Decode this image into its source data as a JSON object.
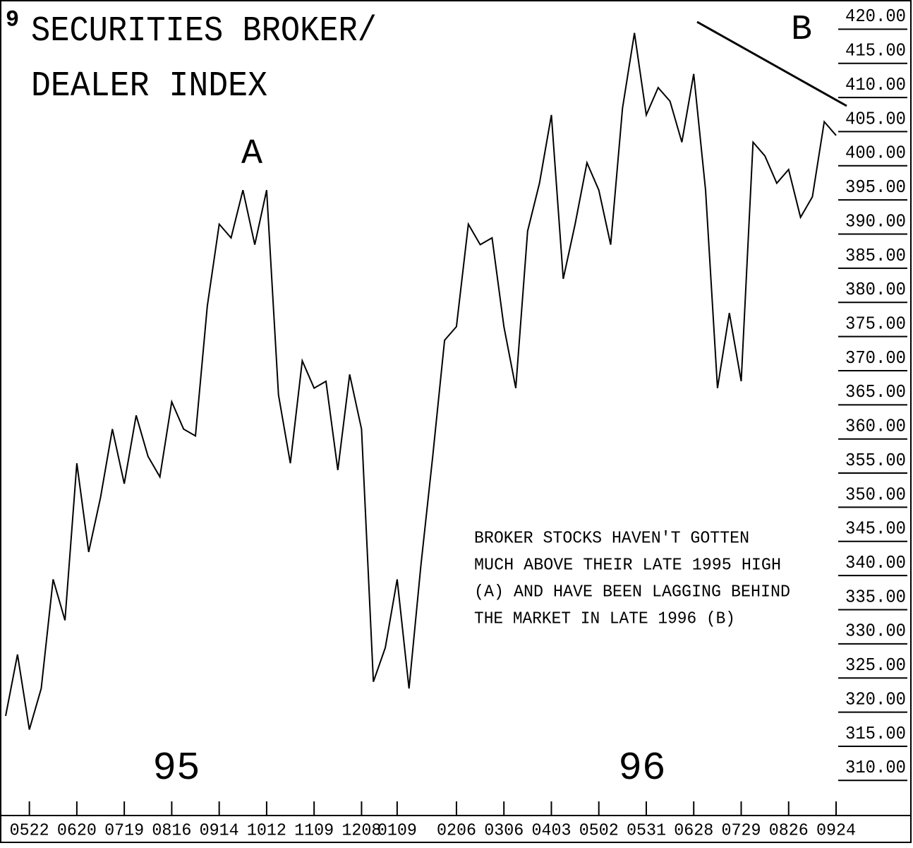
{
  "chart_data": {
    "type": "line",
    "title": "SECURITIES BROKER/",
    "subtitle": "DEALER INDEX",
    "figure_number": "9",
    "annotations": {
      "peak_a": "A",
      "peak_b": "B",
      "year_1": "95",
      "year_2": "96",
      "note": [
        "BROKER STOCKS HAVEN'T GOTTEN",
        "MUCH ABOVE THEIR LATE 1995 HIGH",
        "(A) AND HAVE BEEN LAGGING BEHIND",
        "THE MARKET IN LATE 1996 (B)"
      ]
    },
    "categories": [
      null,
      null,
      "0522",
      null,
      null,
      null,
      "0620",
      null,
      null,
      null,
      "0719",
      null,
      null,
      null,
      "0816",
      null,
      null,
      null,
      "0914",
      null,
      null,
      null,
      "1012",
      null,
      null,
      null,
      "1109",
      null,
      null,
      null,
      "1208",
      null,
      null,
      "0109",
      null,
      null,
      null,
      null,
      "0206",
      null,
      null,
      null,
      "0306",
      null,
      null,
      null,
      "0403",
      null,
      null,
      null,
      "0502",
      null,
      null,
      null,
      "0531",
      null,
      null,
      null,
      "0628",
      null,
      null,
      null,
      "0729",
      null,
      null,
      null,
      "0826",
      null,
      null,
      null,
      "0924"
    ],
    "values": [
      318,
      327,
      316,
      322,
      338,
      332,
      355,
      342,
      350,
      360,
      352,
      362,
      356,
      353,
      364,
      360,
      359,
      378,
      390,
      388,
      395,
      387,
      395,
      365,
      355,
      370,
      366,
      367,
      354,
      368,
      360,
      323,
      328,
      338,
      322,
      340,
      356,
      373,
      375,
      390,
      387,
      388,
      375,
      366,
      389,
      396,
      406,
      382,
      390,
      399,
      395,
      387,
      407,
      418,
      406,
      410,
      408,
      402,
      412,
      395,
      366,
      377,
      367,
      402,
      400,
      396,
      398,
      391,
      394,
      405,
      403
    ],
    "color": "#000000",
    "ylim": [
      306,
      422
    ],
    "yticks": [
      {
        "value": 420,
        "label": "420.00"
      },
      {
        "value": 415,
        "label": "415.00"
      },
      {
        "value": 410,
        "label": "410.00"
      },
      {
        "value": 405,
        "label": "405.00"
      },
      {
        "value": 400,
        "label": "400.00"
      },
      {
        "value": 395,
        "label": "395.00"
      },
      {
        "value": 390,
        "label": "390.00"
      },
      {
        "value": 385,
        "label": "385.00"
      },
      {
        "value": 380,
        "label": "380.00"
      },
      {
        "value": 375,
        "label": "375.00"
      },
      {
        "value": 370,
        "label": "370.00"
      },
      {
        "value": 365,
        "label": "365.00"
      },
      {
        "value": 360,
        "label": "360.00"
      },
      {
        "value": 355,
        "label": "355.00"
      },
      {
        "value": 350,
        "label": "350.00"
      },
      {
        "value": 345,
        "label": "345.00"
      },
      {
        "value": 340,
        "label": "340.00"
      },
      {
        "value": 335,
        "label": "335.00"
      },
      {
        "value": 330,
        "label": "330.00"
      },
      {
        "value": 325,
        "label": "325.00"
      },
      {
        "value": 320,
        "label": "320.00"
      },
      {
        "value": 315,
        "label": "315.00"
      },
      {
        "value": 310,
        "label": "310.00"
      }
    ],
    "y_axis_side": "right"
  }
}
